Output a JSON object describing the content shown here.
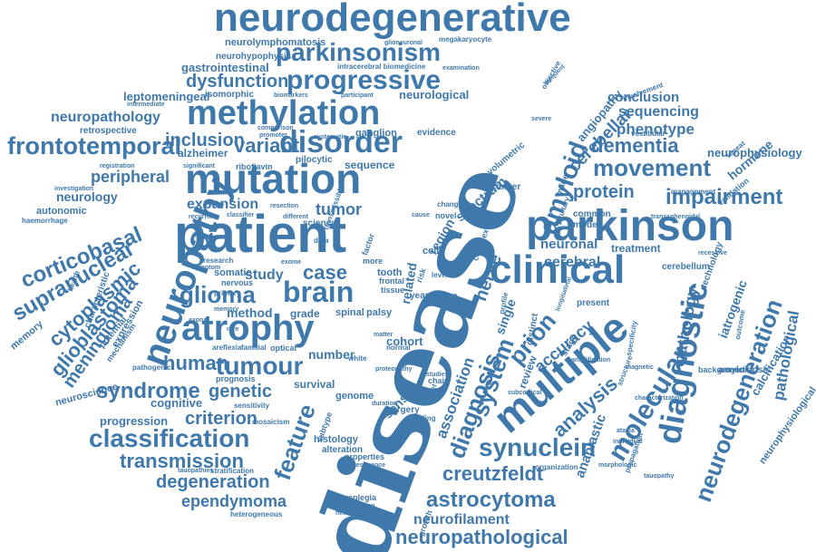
{
  "colors": {
    "word": "#3f78ab",
    "word_light": "#4b84b7",
    "background": "#ffffff"
  },
  "words": [
    {
      "text": "neurodegenerative"
    },
    {
      "text": "neurolymphomatosis"
    },
    {
      "text": "neurohypophysis"
    },
    {
      "text": "megakaryocyte"
    },
    {
      "text": "glioneuronal"
    },
    {
      "text": "parkinsonism"
    },
    {
      "text": "gastrointestinal"
    },
    {
      "text": "intracerebral biomedicine"
    },
    {
      "text": "examination"
    },
    {
      "text": "dysfunction"
    },
    {
      "text": "progressive"
    },
    {
      "text": "leptomeningeal"
    },
    {
      "text": "isomorphic"
    },
    {
      "text": "biomarkers"
    },
    {
      "text": "participant"
    },
    {
      "text": "neurological"
    },
    {
      "text": "intermediate"
    },
    {
      "text": "methylation"
    },
    {
      "text": "neuropathology"
    },
    {
      "text": "retrospective"
    },
    {
      "text": "frontotemporal"
    },
    {
      "text": "inclusion"
    },
    {
      "text": "disorder"
    },
    {
      "text": "variant"
    },
    {
      "text": "alzheimer"
    },
    {
      "text": "riboflavin"
    },
    {
      "text": "ganglion"
    },
    {
      "text": "evidence"
    },
    {
      "text": "pilocytic"
    },
    {
      "text": "sequence"
    },
    {
      "text": "mutation"
    },
    {
      "text": "peripheral"
    },
    {
      "text": "neurology"
    },
    {
      "text": "autonomic"
    },
    {
      "text": "haemorrhage"
    },
    {
      "text": "investigation"
    },
    {
      "text": "registration"
    },
    {
      "text": "expansion"
    },
    {
      "text": "tumor"
    },
    {
      "text": "corticobasal"
    },
    {
      "text": "supranuclear"
    },
    {
      "text": "cytoplasmic"
    },
    {
      "text": "glioblastoma"
    },
    {
      "text": "meningioma"
    },
    {
      "text": "neuropathy"
    },
    {
      "text": "patient"
    },
    {
      "text": "brain"
    },
    {
      "text": "glioma"
    },
    {
      "text": "case"
    },
    {
      "text": "study"
    },
    {
      "text": "somatic"
    },
    {
      "text": "nervous"
    },
    {
      "text": "atrophy"
    },
    {
      "text": "method"
    },
    {
      "text": "grade"
    },
    {
      "text": "spinal"
    },
    {
      "text": "palsy"
    },
    {
      "text": "human"
    },
    {
      "text": "tumour"
    },
    {
      "text": "number"
    },
    {
      "text": "syndrome"
    },
    {
      "text": "genetic"
    },
    {
      "text": "cognitive"
    },
    {
      "text": "survival"
    },
    {
      "text": "genome"
    },
    {
      "text": "sensory"
    },
    {
      "text": "criterion"
    },
    {
      "text": "progression"
    },
    {
      "text": "classification"
    },
    {
      "text": "histology"
    },
    {
      "text": "alteration"
    },
    {
      "text": "properties"
    },
    {
      "text": "transmission"
    },
    {
      "text": "degeneration"
    },
    {
      "text": "ependymoma"
    },
    {
      "text": "paraplegia"
    },
    {
      "text": "identification"
    },
    {
      "text": "heterogeneity"
    },
    {
      "text": "heterogeneous"
    },
    {
      "text": "feature"
    },
    {
      "text": "disease"
    },
    {
      "text": "diagnosis"
    },
    {
      "text": "association"
    },
    {
      "text": "system"
    },
    {
      "text": "clinical"
    },
    {
      "text": "parkinson"
    },
    {
      "text": "prion"
    },
    {
      "text": "multiple"
    },
    {
      "text": "synuclein"
    },
    {
      "text": "creutzfeldt"
    },
    {
      "text": "astrocytoma"
    },
    {
      "text": "neurofilament"
    },
    {
      "text": "neuropathological"
    },
    {
      "text": "amyloid"
    },
    {
      "text": "dementia"
    },
    {
      "text": "movement"
    },
    {
      "text": "protein"
    },
    {
      "text": "impairment"
    },
    {
      "text": "cerebellar"
    },
    {
      "text": "angiopathy"
    },
    {
      "text": "conclusion"
    },
    {
      "text": "sequencing"
    },
    {
      "text": "phenotype"
    },
    {
      "text": "neurophysiology"
    },
    {
      "text": "neuronal"
    },
    {
      "text": "treatment"
    },
    {
      "text": "cerebral"
    },
    {
      "text": "analysis"
    },
    {
      "text": "accuracy"
    },
    {
      "text": "molecular"
    },
    {
      "text": "diagnostic"
    },
    {
      "text": "pathology"
    },
    {
      "text": "iatrogenic"
    },
    {
      "text": "neurodegeneration"
    },
    {
      "text": "pathological"
    },
    {
      "text": "calcification"
    },
    {
      "text": "neurophysiological"
    },
    {
      "text": "anaplastic"
    },
    {
      "text": "amyloidosis"
    },
    {
      "text": "spectrum"
    },
    {
      "text": "volumetric"
    },
    {
      "text": "involvement"
    },
    {
      "text": "vestibular"
    },
    {
      "text": "background"
    },
    {
      "text": "transsphenoidal"
    },
    {
      "text": "validation"
    },
    {
      "text": "management"
    },
    {
      "text": "hormone"
    },
    {
      "text": "common"
    },
    {
      "text": "model"
    },
    {
      "text": "cerebellum"
    },
    {
      "text": "technology"
    },
    {
      "text": "recessive"
    },
    {
      "text": "magnetic"
    },
    {
      "text": "characterization"
    },
    {
      "text": "propagation"
    },
    {
      "text": "organization"
    },
    {
      "text": "morphologic"
    },
    {
      "text": "tauopathy"
    },
    {
      "text": "individual"
    },
    {
      "text": "ataxia"
    },
    {
      "text": "cohort"
    },
    {
      "text": "single"
    },
    {
      "text": "novel"
    },
    {
      "text": "tissue"
    },
    {
      "text": "cell"
    },
    {
      "text": "nerve"
    },
    {
      "text": "type"
    },
    {
      "text": "year"
    },
    {
      "text": "related"
    },
    {
      "text": "region"
    },
    {
      "text": "cancer"
    },
    {
      "text": "change"
    },
    {
      "text": "present"
    },
    {
      "text": "distinct"
    },
    {
      "text": "review"
    },
    {
      "text": "stage"
    },
    {
      "text": "normal"
    },
    {
      "text": "white"
    },
    {
      "text": "matter"
    },
    {
      "text": "data"
    },
    {
      "text": "tooth"
    },
    {
      "text": "more"
    },
    {
      "text": "frontal"
    },
    {
      "text": "primary"
    },
    {
      "text": "research"
    },
    {
      "text": "symptom"
    },
    {
      "text": "expression"
    },
    {
      "text": "characteristic"
    },
    {
      "text": "memory"
    },
    {
      "text": "potential"
    },
    {
      "text": "mechanism"
    },
    {
      "text": "pathogenic"
    },
    {
      "text": "neuroscience"
    },
    {
      "text": "areflexia"
    },
    {
      "text": "familial"
    },
    {
      "text": "optical"
    },
    {
      "text": "prognosis"
    },
    {
      "text": "sensitivity"
    },
    {
      "text": "mosaicism"
    },
    {
      "text": "subtype"
    },
    {
      "text": "surgery"
    },
    {
      "text": "duration"
    },
    {
      "text": "finding"
    },
    {
      "text": "resonance"
    },
    {
      "text": "tauopathies"
    },
    {
      "text": "stratification"
    },
    {
      "text": "comparison"
    },
    {
      "text": "promoter"
    },
    {
      "text": "significant"
    },
    {
      "text": "recurrent"
    },
    {
      "text": "classifier"
    },
    {
      "text": "different"
    },
    {
      "text": "exome"
    },
    {
      "text": "factor"
    },
    {
      "text": "risk"
    },
    {
      "text": "complex"
    },
    {
      "text": "group"
    },
    {
      "text": "level"
    },
    {
      "text": "label"
    },
    {
      "text": "chain"
    },
    {
      "text": "studies"
    },
    {
      "text": "growth"
    },
    {
      "text": "science"
    },
    {
      "text": "transmissible"
    },
    {
      "text": "cause"
    },
    {
      "text": "marie"
    },
    {
      "text": "severe"
    },
    {
      "text": "pituitary"
    },
    {
      "text": "objective"
    },
    {
      "text": "repeat"
    },
    {
      "text": "longitudinal"
    },
    {
      "text": "amplification"
    },
    {
      "text": "structure"
    },
    {
      "text": "specificity"
    },
    {
      "text": "subcortical"
    },
    {
      "text": "outcome"
    },
    {
      "text": "proteopathy"
    },
    {
      "text": "systematic"
    },
    {
      "text": "profile"
    },
    {
      "text": "health"
    },
    {
      "text": "axonal"
    },
    {
      "text": "rare"
    },
    {
      "text": "frequent"
    },
    {
      "text": "resection"
    },
    {
      "text": "glial"
    },
    {
      "text": "international"
    },
    {
      "text": "deletion"
    }
  ]
}
